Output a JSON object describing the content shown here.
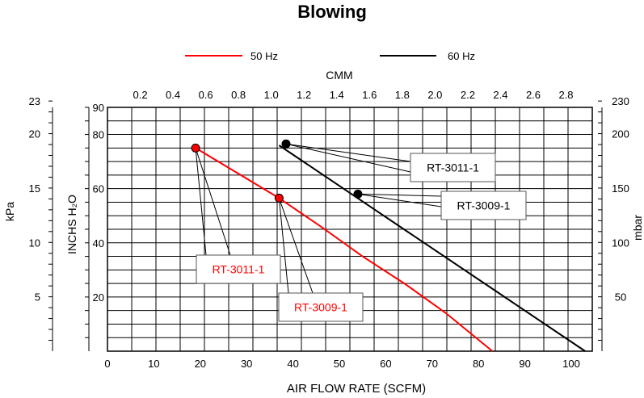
{
  "chart_data": {
    "type": "line",
    "title": "Blowing",
    "xlabel": "AIR FLOW RATE (SCFM)",
    "x2label": "CMM",
    "ylabel": "INCHS H₂O",
    "y2label": "mbar",
    "y3label": "kPa",
    "xlim": [
      0,
      104
    ],
    "ylim": [
      0,
      90
    ],
    "x_ticks": [
      "0",
      "10",
      "20",
      "30",
      "40",
      "50",
      "60",
      "70",
      "80",
      "90",
      "100"
    ],
    "x2_ticks": [
      "0.2",
      "0.4",
      "0.6",
      "0.8",
      "1.0",
      "1.2",
      "1.4",
      "1.6",
      "1.8",
      "2.0",
      "2.2",
      "2.4",
      "2.6",
      "2.8"
    ],
    "y_ticks": [
      "20",
      "40",
      "60",
      "80",
      "90"
    ],
    "y2_ticks": [
      "50",
      "100",
      "150",
      "200",
      "230"
    ],
    "y3_ticks": [
      "5",
      "10",
      "15",
      "20",
      "23"
    ],
    "grid": true,
    "legend": "top-center",
    "series": [
      {
        "name": "50 Hz",
        "color": "#ff0000",
        "x": [
          19,
          37,
          46,
          55,
          64,
          73,
          83
        ],
        "y": [
          75,
          56.5,
          46,
          35,
          25,
          14,
          0
        ]
      },
      {
        "name": "60 Hz",
        "color": "#000000",
        "x": [
          37,
          103
        ],
        "y": [
          76,
          0
        ]
      }
    ],
    "markers": [
      {
        "x": 19,
        "y": 75,
        "color": "#ff0000"
      },
      {
        "x": 37,
        "y": 56.5,
        "color": "#ff0000"
      },
      {
        "x": 38.5,
        "y": 76.5,
        "color": "#000000"
      },
      {
        "x": 54,
        "y": 58,
        "color": "#000000"
      }
    ],
    "annotations": [
      {
        "text": "RT-3011-1",
        "color": "#ff0000",
        "target": 0
      },
      {
        "text": "RT-3009-1",
        "color": "#ff0000",
        "target": 1
      },
      {
        "text": "RT-3011-1",
        "color": "#000000",
        "target": 2
      },
      {
        "text": "RT-3009-1",
        "color": "#000000",
        "target": 3
      }
    ]
  }
}
